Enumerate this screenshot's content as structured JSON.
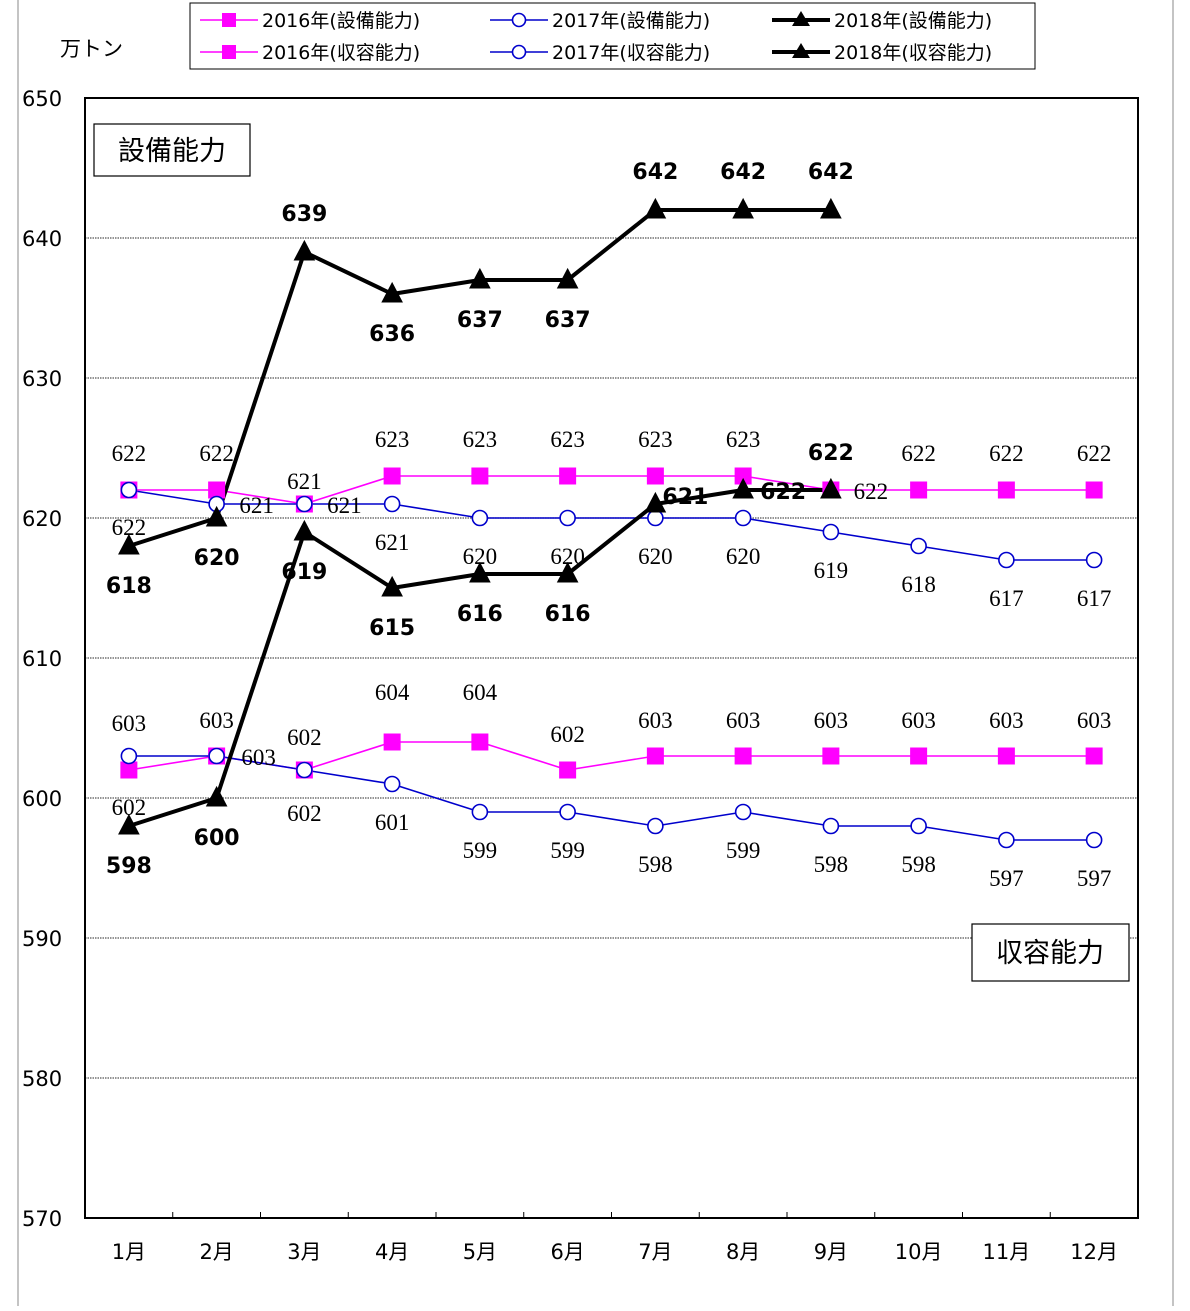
{
  "chart_data": {
    "type": "line",
    "unit_label": "万トン",
    "categories": [
      "1月",
      "2月",
      "3月",
      "4月",
      "5月",
      "6月",
      "7月",
      "8月",
      "9月",
      "10月",
      "11月",
      "12月"
    ],
    "ylim": [
      570,
      650
    ],
    "yticks": [
      570,
      580,
      590,
      600,
      610,
      620,
      630,
      640,
      650
    ],
    "grid": true,
    "legend_position": "top",
    "section_labels": {
      "upper": "設備能力",
      "lower": "収容能力"
    },
    "series": [
      {
        "name": "2016年(設備能力)",
        "marker": "square",
        "color": "#ff00ff",
        "bold": false,
        "values": [
          622,
          622,
          621,
          623,
          623,
          623,
          623,
          623,
          622,
          622,
          622,
          622
        ]
      },
      {
        "name": "2017年(設備能力)",
        "marker": "circle",
        "color": "#0000cc",
        "bold": false,
        "values": [
          622,
          621,
          621,
          621,
          620,
          620,
          620,
          620,
          619,
          618,
          617,
          617
        ]
      },
      {
        "name": "2018年(設備能力)",
        "marker": "triangle",
        "color": "#000000",
        "bold": true,
        "values": [
          618,
          620,
          639,
          636,
          637,
          637,
          642,
          642,
          642,
          null,
          null,
          null
        ]
      },
      {
        "name": "2016年(収容能力)",
        "marker": "square",
        "color": "#ff00ff",
        "bold": false,
        "values": [
          602,
          603,
          602,
          604,
          604,
          602,
          603,
          603,
          603,
          603,
          603,
          603
        ]
      },
      {
        "name": "2017年(収容能力)",
        "marker": "circle",
        "color": "#0000cc",
        "bold": false,
        "values": [
          603,
          603,
          602,
          601,
          599,
          599,
          598,
          599,
          598,
          598,
          597,
          597
        ]
      },
      {
        "name": "2018年(収容能力)",
        "marker": "triangle",
        "color": "#000000",
        "bold": true,
        "values": [
          598,
          600,
          619,
          615,
          616,
          616,
          621,
          622,
          622,
          null,
          null,
          null
        ]
      }
    ]
  }
}
